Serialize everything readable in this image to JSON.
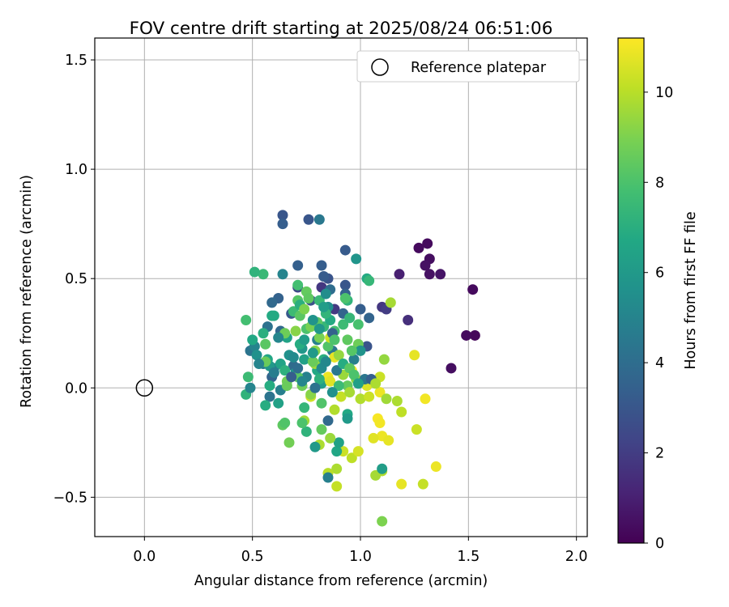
{
  "chart_data": {
    "type": "scatter",
    "title": "FOV centre drift starting at 2025/08/24 06:51:06",
    "xlabel": "Angular distance from reference (arcmin)",
    "ylabel": "Rotation from reference (arcmin)",
    "xlim": [
      -0.23,
      2.05
    ],
    "ylim": [
      -0.68,
      1.6
    ],
    "xticks": [
      0.0,
      0.5,
      1.0,
      1.5,
      2.0
    ],
    "xtick_labels": [
      "0.0",
      "0.5",
      "1.0",
      "1.5",
      "2.0"
    ],
    "yticks": [
      -0.5,
      0.0,
      0.5,
      1.0,
      1.5
    ],
    "ytick_labels": [
      "−0.5",
      "0.0",
      "0.5",
      "1.0",
      "1.5"
    ],
    "grid": true,
    "legend": {
      "placement": "top-right",
      "label": "Reference platepar",
      "marker": "open-circle"
    },
    "reference_point": {
      "x": 0.0,
      "y": 0.0
    },
    "colorbar": {
      "label": "Hours from first FF file",
      "colormap": "viridis",
      "range": [
        0,
        11.2
      ],
      "ticks": [
        0,
        2,
        4,
        6,
        8,
        10
      ],
      "tick_labels": [
        "0",
        "2",
        "4",
        "6",
        "8",
        "10"
      ]
    },
    "points": [
      {
        "x": 1.31,
        "y": 0.66,
        "h": 0.3
      },
      {
        "x": 1.27,
        "y": 0.64,
        "h": 0.3
      },
      {
        "x": 1.32,
        "y": 0.59,
        "h": 0.4
      },
      {
        "x": 1.3,
        "y": 0.56,
        "h": 0.5
      },
      {
        "x": 1.32,
        "y": 0.52,
        "h": 0.5
      },
      {
        "x": 1.37,
        "y": 0.52,
        "h": 0.6
      },
      {
        "x": 1.52,
        "y": 0.45,
        "h": 0.3
      },
      {
        "x": 1.53,
        "y": 0.24,
        "h": 0.2
      },
      {
        "x": 1.49,
        "y": 0.24,
        "h": 0.3
      },
      {
        "x": 1.42,
        "y": 0.09,
        "h": 0.4
      },
      {
        "x": 1.18,
        "y": 0.52,
        "h": 1.0
      },
      {
        "x": 1.22,
        "y": 0.31,
        "h": 1.5
      },
      {
        "x": 1.1,
        "y": 0.37,
        "h": 1.8
      },
      {
        "x": 1.12,
        "y": 0.36,
        "h": 2.0
      },
      {
        "x": 0.82,
        "y": 0.46,
        "h": 1.8
      },
      {
        "x": 0.88,
        "y": 0.36,
        "h": 1.9
      },
      {
        "x": 0.64,
        "y": 0.79,
        "h": 3.0
      },
      {
        "x": 0.64,
        "y": 0.75,
        "h": 3.3
      },
      {
        "x": 0.76,
        "y": 0.77,
        "h": 3.0
      },
      {
        "x": 0.81,
        "y": 0.77,
        "h": 4.5
      },
      {
        "x": 0.93,
        "y": 0.63,
        "h": 3.2
      },
      {
        "x": 0.71,
        "y": 0.56,
        "h": 3.4
      },
      {
        "x": 0.82,
        "y": 0.56,
        "h": 3.3
      },
      {
        "x": 0.64,
        "y": 0.52,
        "h": 5.0
      },
      {
        "x": 0.85,
        "y": 0.5,
        "h": 2.9
      },
      {
        "x": 0.83,
        "y": 0.51,
        "h": 3.2
      },
      {
        "x": 0.93,
        "y": 0.47,
        "h": 3.0
      },
      {
        "x": 0.93,
        "y": 0.43,
        "h": 3.5
      },
      {
        "x": 0.71,
        "y": 0.46,
        "h": 2.5
      },
      {
        "x": 0.62,
        "y": 0.41,
        "h": 3.5
      },
      {
        "x": 0.59,
        "y": 0.39,
        "h": 3.8
      },
      {
        "x": 0.77,
        "y": 0.4,
        "h": 2.8
      },
      {
        "x": 0.85,
        "y": 0.37,
        "h": 5.5
      },
      {
        "x": 0.92,
        "y": 0.34,
        "h": 3.6
      },
      {
        "x": 1.0,
        "y": 0.36,
        "h": 3.3
      },
      {
        "x": 1.04,
        "y": 0.32,
        "h": 3.6
      },
      {
        "x": 0.68,
        "y": 0.34,
        "h": 3.1
      },
      {
        "x": 0.98,
        "y": 0.59,
        "h": 5.8
      },
      {
        "x": 0.6,
        "y": 0.33,
        "h": 6.8
      },
      {
        "x": 0.55,
        "y": 0.52,
        "h": 7.5
      },
      {
        "x": 0.51,
        "y": 0.53,
        "h": 7.2
      },
      {
        "x": 0.86,
        "y": 0.45,
        "h": 4.0
      },
      {
        "x": 0.75,
        "y": 0.44,
        "h": 8.5
      },
      {
        "x": 0.71,
        "y": 0.47,
        "h": 7.8
      },
      {
        "x": 0.63,
        "y": 0.26,
        "h": 3.8
      },
      {
        "x": 0.57,
        "y": 0.28,
        "h": 4.2
      },
      {
        "x": 0.66,
        "y": 0.23,
        "h": 6.5
      },
      {
        "x": 0.73,
        "y": 0.18,
        "h": 5.9
      },
      {
        "x": 0.8,
        "y": 0.22,
        "h": 4.9
      },
      {
        "x": 0.87,
        "y": 0.17,
        "h": 4.5
      },
      {
        "x": 0.97,
        "y": 0.13,
        "h": 4.8
      },
      {
        "x": 1.03,
        "y": 0.19,
        "h": 2.9
      },
      {
        "x": 0.6,
        "y": 0.09,
        "h": 4.4
      },
      {
        "x": 0.59,
        "y": 0.05,
        "h": 3.6
      },
      {
        "x": 0.69,
        "y": 0.1,
        "h": 3.9
      },
      {
        "x": 0.75,
        "y": 0.05,
        "h": 4.9
      },
      {
        "x": 0.55,
        "y": 0.11,
        "h": 4.6
      },
      {
        "x": 0.49,
        "y": 0.17,
        "h": 4.3
      },
      {
        "x": 0.51,
        "y": 0.19,
        "h": 5.0
      },
      {
        "x": 0.47,
        "y": 0.31,
        "h": 7.8
      },
      {
        "x": 0.5,
        "y": 0.22,
        "h": 6.7
      },
      {
        "x": 0.58,
        "y": 0.1,
        "h": 6.0
      },
      {
        "x": 0.57,
        "y": 0.13,
        "h": 6.6
      },
      {
        "x": 0.48,
        "y": 0.05,
        "h": 7.6
      },
      {
        "x": 0.47,
        "y": -0.03,
        "h": 7.2
      },
      {
        "x": 0.49,
        "y": 0.0,
        "h": 5.0
      },
      {
        "x": 0.58,
        "y": 0.01,
        "h": 6.9
      },
      {
        "x": 0.58,
        "y": -0.04,
        "h": 4.3
      },
      {
        "x": 0.63,
        "y": -0.01,
        "h": 4.8
      },
      {
        "x": 0.56,
        "y": -0.08,
        "h": 6.9
      },
      {
        "x": 0.62,
        "y": -0.07,
        "h": 6.4
      },
      {
        "x": 0.66,
        "y": 0.03,
        "h": 8.8
      },
      {
        "x": 0.7,
        "y": 0.07,
        "h": 6.0
      },
      {
        "x": 0.73,
        "y": 0.01,
        "h": 8.7
      },
      {
        "x": 0.77,
        "y": -0.04,
        "h": 10.4
      },
      {
        "x": 0.8,
        "y": 0.08,
        "h": 6.7
      },
      {
        "x": 0.82,
        "y": 0.02,
        "h": 6.2
      },
      {
        "x": 0.85,
        "y": 0.05,
        "h": 10.9
      },
      {
        "x": 0.86,
        "y": 0.03,
        "h": 10.7
      },
      {
        "x": 0.88,
        "y": 0.14,
        "h": 10.8
      },
      {
        "x": 0.92,
        "y": 0.06,
        "h": 9.5
      },
      {
        "x": 0.94,
        "y": 0.01,
        "h": 8.5
      },
      {
        "x": 0.96,
        "y": 0.08,
        "h": 11.0
      },
      {
        "x": 0.98,
        "y": 0.04,
        "h": 9.3
      },
      {
        "x": 0.91,
        "y": -0.04,
        "h": 10.2
      },
      {
        "x": 0.95,
        "y": -0.02,
        "h": 9.7
      },
      {
        "x": 1.0,
        "y": -0.05,
        "h": 9.9
      },
      {
        "x": 1.04,
        "y": -0.04,
        "h": 10.3
      },
      {
        "x": 1.03,
        "y": 0.01,
        "h": 10.6
      },
      {
        "x": 1.09,
        "y": -0.02,
        "h": 10.9
      },
      {
        "x": 1.12,
        "y": -0.05,
        "h": 9.6
      },
      {
        "x": 1.17,
        "y": -0.06,
        "h": 9.8
      },
      {
        "x": 1.09,
        "y": 0.05,
        "h": 10.3
      },
      {
        "x": 1.11,
        "y": 0.13,
        "h": 9.4
      },
      {
        "x": 1.25,
        "y": 0.15,
        "h": 10.8
      },
      {
        "x": 1.3,
        "y": -0.05,
        "h": 11.0
      },
      {
        "x": 1.19,
        "y": -0.11,
        "h": 10.1
      },
      {
        "x": 1.08,
        "y": -0.14,
        "h": 11.1
      },
      {
        "x": 1.09,
        "y": -0.16,
        "h": 11.0
      },
      {
        "x": 1.1,
        "y": -0.22,
        "h": 10.9
      },
      {
        "x": 1.13,
        "y": -0.24,
        "h": 10.8
      },
      {
        "x": 1.06,
        "y": -0.23,
        "h": 10.7
      },
      {
        "x": 1.26,
        "y": -0.19,
        "h": 10.3
      },
      {
        "x": 1.35,
        "y": -0.36,
        "h": 10.9
      },
      {
        "x": 1.29,
        "y": -0.44,
        "h": 10.2
      },
      {
        "x": 1.19,
        "y": -0.44,
        "h": 10.8
      },
      {
        "x": 1.1,
        "y": -0.38,
        "h": 9.9
      },
      {
        "x": 1.07,
        "y": -0.4,
        "h": 9.7
      },
      {
        "x": 1.1,
        "y": -0.37,
        "h": 6.2
      },
      {
        "x": 1.1,
        "y": -0.61,
        "h": 9.0
      },
      {
        "x": 0.89,
        "y": -0.45,
        "h": 10.2
      },
      {
        "x": 0.89,
        "y": -0.37,
        "h": 9.8
      },
      {
        "x": 0.85,
        "y": -0.39,
        "h": 10.0
      },
      {
        "x": 0.85,
        "y": -0.41,
        "h": 4.8
      },
      {
        "x": 0.92,
        "y": -0.29,
        "h": 10.3
      },
      {
        "x": 0.96,
        "y": -0.32,
        "h": 10.1
      },
      {
        "x": 0.99,
        "y": -0.29,
        "h": 10.5
      },
      {
        "x": 0.89,
        "y": -0.29,
        "h": 6.6
      },
      {
        "x": 0.9,
        "y": -0.25,
        "h": 6.4
      },
      {
        "x": 0.86,
        "y": -0.23,
        "h": 9.5
      },
      {
        "x": 0.81,
        "y": -0.26,
        "h": 9.8
      },
      {
        "x": 0.79,
        "y": -0.27,
        "h": 6.0
      },
      {
        "x": 0.82,
        "y": -0.19,
        "h": 8.5
      },
      {
        "x": 0.75,
        "y": -0.2,
        "h": 7.2
      },
      {
        "x": 0.74,
        "y": -0.15,
        "h": 9.6
      },
      {
        "x": 0.73,
        "y": -0.16,
        "h": 8.0
      },
      {
        "x": 0.67,
        "y": -0.25,
        "h": 8.8
      },
      {
        "x": 0.64,
        "y": -0.17,
        "h": 8.4
      },
      {
        "x": 0.65,
        "y": -0.16,
        "h": 8.1
      },
      {
        "x": 0.85,
        "y": -0.15,
        "h": 3.8
      },
      {
        "x": 0.88,
        "y": -0.1,
        "h": 9.9
      },
      {
        "x": 0.94,
        "y": -0.12,
        "h": 6.7
      },
      {
        "x": 0.94,
        "y": -0.14,
        "h": 6.0
      },
      {
        "x": 0.74,
        "y": -0.09,
        "h": 7.4
      },
      {
        "x": 0.82,
        "y": -0.07,
        "h": 8.1
      },
      {
        "x": 0.77,
        "y": -0.03,
        "h": 9.2
      },
      {
        "x": 0.66,
        "y": 0.01,
        "h": 8.6
      },
      {
        "x": 0.71,
        "y": 0.05,
        "h": 8.3
      },
      {
        "x": 0.81,
        "y": 0.04,
        "h": 7.1
      },
      {
        "x": 0.79,
        "y": 0.11,
        "h": 9.6
      },
      {
        "x": 0.83,
        "y": 0.13,
        "h": 7.0
      },
      {
        "x": 0.9,
        "y": 0.15,
        "h": 9.4
      },
      {
        "x": 0.94,
        "y": 0.22,
        "h": 8.4
      },
      {
        "x": 0.99,
        "y": 0.2,
        "h": 8.7
      },
      {
        "x": 1.0,
        "y": 0.17,
        "h": 5.7
      },
      {
        "x": 0.96,
        "y": 0.17,
        "h": 8.2
      },
      {
        "x": 0.92,
        "y": 0.29,
        "h": 7.6
      },
      {
        "x": 0.95,
        "y": 0.32,
        "h": 7.4
      },
      {
        "x": 0.99,
        "y": 0.29,
        "h": 7.9
      },
      {
        "x": 0.94,
        "y": 0.4,
        "h": 7.2
      },
      {
        "x": 0.93,
        "y": 0.41,
        "h": 8.0
      },
      {
        "x": 0.81,
        "y": 0.4,
        "h": 7.5
      },
      {
        "x": 0.76,
        "y": 0.41,
        "h": 8.4
      },
      {
        "x": 0.71,
        "y": 0.4,
        "h": 8.2
      },
      {
        "x": 0.69,
        "y": 0.35,
        "h": 7.6
      },
      {
        "x": 0.72,
        "y": 0.33,
        "h": 8.3
      },
      {
        "x": 0.75,
        "y": 0.27,
        "h": 8.0
      },
      {
        "x": 0.77,
        "y": 0.28,
        "h": 8.9
      },
      {
        "x": 0.7,
        "y": 0.26,
        "h": 9.2
      },
      {
        "x": 0.65,
        "y": 0.25,
        "h": 8.7
      },
      {
        "x": 0.59,
        "y": 0.33,
        "h": 6.8
      },
      {
        "x": 0.55,
        "y": 0.25,
        "h": 7.0
      },
      {
        "x": 0.56,
        "y": 0.2,
        "h": 8.3
      },
      {
        "x": 0.56,
        "y": 0.12,
        "h": 8.6
      },
      {
        "x": 0.52,
        "y": 0.15,
        "h": 5.6
      },
      {
        "x": 0.53,
        "y": 0.11,
        "h": 5.0
      },
      {
        "x": 0.6,
        "y": 0.07,
        "h": 4.7
      },
      {
        "x": 0.63,
        "y": 0.11,
        "h": 6.5
      },
      {
        "x": 0.67,
        "y": 0.15,
        "h": 5.6
      },
      {
        "x": 0.72,
        "y": 0.2,
        "h": 6.9
      },
      {
        "x": 0.74,
        "y": 0.13,
        "h": 6.4
      },
      {
        "x": 0.78,
        "y": 0.12,
        "h": 8.6
      },
      {
        "x": 0.79,
        "y": 0.17,
        "h": 9.2
      },
      {
        "x": 0.81,
        "y": 0.23,
        "h": 8.9
      },
      {
        "x": 0.85,
        "y": 0.19,
        "h": 8.1
      },
      {
        "x": 0.86,
        "y": 0.23,
        "h": 10.3
      },
      {
        "x": 0.88,
        "y": 0.26,
        "h": 7.8
      },
      {
        "x": 0.83,
        "y": 0.28,
        "h": 7.4
      },
      {
        "x": 0.8,
        "y": 0.3,
        "h": 8.3
      },
      {
        "x": 0.86,
        "y": 0.31,
        "h": 6.8
      },
      {
        "x": 0.84,
        "y": 0.34,
        "h": 7.3
      },
      {
        "x": 0.87,
        "y": 0.25,
        "h": 3.5
      },
      {
        "x": 0.78,
        "y": 0.31,
        "h": 5.7
      },
      {
        "x": 0.81,
        "y": 0.27,
        "h": 5.9
      },
      {
        "x": 0.74,
        "y": 0.22,
        "h": 6.2
      },
      {
        "x": 0.78,
        "y": 0.16,
        "h": 6.0
      },
      {
        "x": 0.82,
        "y": 0.09,
        "h": 5.3
      },
      {
        "x": 0.84,
        "y": 0.12,
        "h": 5.2
      },
      {
        "x": 0.89,
        "y": 0.08,
        "h": 4.5
      },
      {
        "x": 0.92,
        "y": 0.11,
        "h": 6.9
      },
      {
        "x": 0.95,
        "y": 0.09,
        "h": 8.3
      },
      {
        "x": 0.97,
        "y": 0.06,
        "h": 8.0
      },
      {
        "x": 1.02,
        "y": 0.04,
        "h": 4.4
      },
      {
        "x": 1.05,
        "y": 0.04,
        "h": 3.4
      },
      {
        "x": 1.07,
        "y": 0.02,
        "h": 9.8
      },
      {
        "x": 0.99,
        "y": 0.02,
        "h": 6.3
      },
      {
        "x": 0.9,
        "y": 0.01,
        "h": 7.6
      },
      {
        "x": 0.87,
        "y": -0.02,
        "h": 5.6
      },
      {
        "x": 0.69,
        "y": 0.14,
        "h": 5.3
      },
      {
        "x": 0.65,
        "y": 0.08,
        "h": 7.1
      },
      {
        "x": 0.68,
        "y": 0.05,
        "h": 3.3
      },
      {
        "x": 0.71,
        "y": 0.09,
        "h": 4.0
      },
      {
        "x": 0.73,
        "y": 0.03,
        "h": 5.1
      },
      {
        "x": 0.79,
        "y": 0.0,
        "h": 4.2
      },
      {
        "x": 1.03,
        "y": 0.5,
        "h": 6.8
      },
      {
        "x": 1.04,
        "y": 0.49,
        "h": 7.4
      },
      {
        "x": 0.72,
        "y": 0.38,
        "h": 7.0
      },
      {
        "x": 0.83,
        "y": 0.37,
        "h": 6.2
      },
      {
        "x": 0.84,
        "y": 0.43,
        "h": 5.4
      },
      {
        "x": 0.62,
        "y": 0.23,
        "h": 5.1
      },
      {
        "x": 1.14,
        "y": 0.39,
        "h": 9.7
      },
      {
        "x": 0.88,
        "y": 0.22,
        "h": 8.0
      },
      {
        "x": 0.74,
        "y": 0.36,
        "h": 9.0
      }
    ]
  }
}
